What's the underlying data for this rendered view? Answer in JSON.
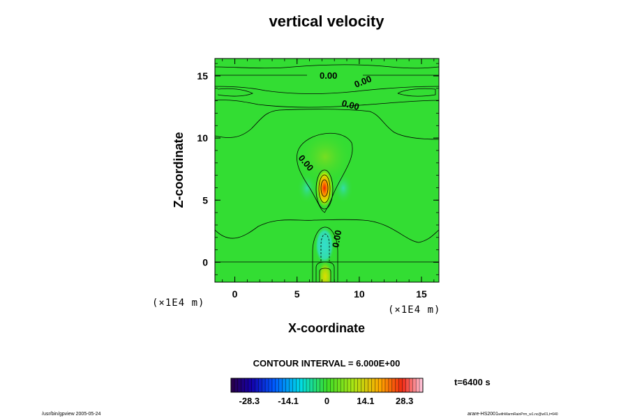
{
  "chart_data": {
    "type": "heatmap",
    "subtype": "filled-contour",
    "title": "vertical velocity",
    "xlabel": "X-coordinate",
    "ylabel": "Z-coordinate",
    "x_unit": "(×1E4 m)",
    "y_unit": "(×1E4 m)",
    "xlim": [
      -1.6,
      16.4
    ],
    "ylim": [
      -1.6,
      16.4
    ],
    "xticks": [
      0,
      5,
      10,
      15
    ],
    "yticks": [
      0,
      5,
      10,
      15
    ],
    "x_tick_labels": [
      "0",
      "5",
      "10",
      "15"
    ],
    "y_tick_labels": [
      "0",
      "5",
      "10",
      "15"
    ],
    "contour_interval_label": "CONTOUR INTERVAL = 6.000E+00",
    "contour_labels": [
      "0.00",
      "0.00",
      "0.00",
      "0.00",
      "0.00"
    ],
    "colorbar": {
      "min": -35,
      "max": 35,
      "ticks": [
        -28.3,
        -14.1,
        0,
        14.1,
        28.3
      ],
      "tick_labels": [
        "-28.3",
        "-14.1",
        "0",
        "14.1",
        "28.3"
      ],
      "colormap": "rainbow"
    },
    "features": [
      {
        "kind": "updraft-max",
        "x": 7.2,
        "z": 6.0,
        "value": 28.0
      },
      {
        "kind": "downdraft-min",
        "x": 7.2,
        "z": 2.2,
        "value": -8.0
      },
      {
        "kind": "updraft-lower",
        "x": 7.2,
        "z": -1.0,
        "value": 12.0
      }
    ],
    "time_label": "t=6400 s"
  },
  "footer": {
    "left": "/usr/bin/gpview 2005-05-24",
    "right_main": "arare-HS2001",
    "right_sub": "withWarmRainPrm_w1.nc@w01,t=640"
  },
  "colors": {
    "background_field": "#33dd33",
    "updraft_core": "#ee3300",
    "downdraft_core": "#33ddcc"
  }
}
